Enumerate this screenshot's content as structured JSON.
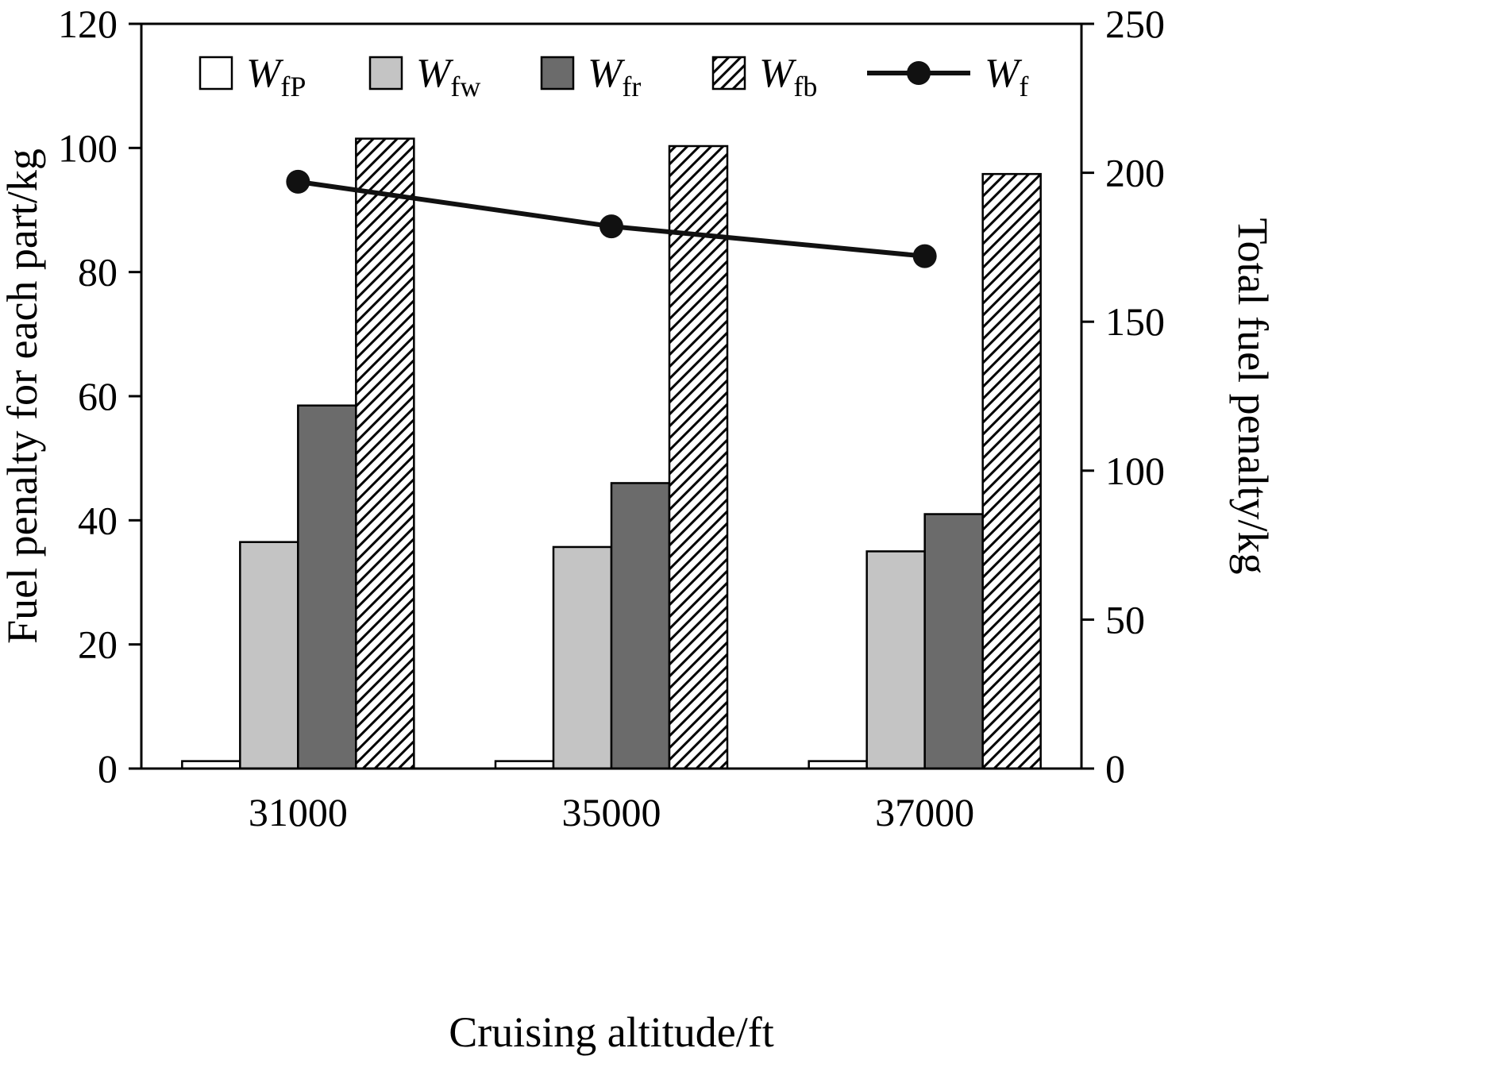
{
  "chart_data": {
    "type": "bar",
    "title": "",
    "xlabel": "Cruising altitude/ft",
    "ylabel_left": "Fuel penalty for each part/kg",
    "ylabel_right": "Total fuel penalty/kg",
    "categories": [
      "31000",
      "35000",
      "37000"
    ],
    "left_axis": {
      "min": 0,
      "max": 120,
      "ticks": [
        0,
        20,
        40,
        60,
        80,
        100,
        120
      ]
    },
    "right_axis": {
      "min": 0,
      "max": 250,
      "ticks": [
        0,
        50,
        100,
        150,
        200,
        250
      ]
    },
    "grid": "off",
    "legend_position": "top-inside",
    "series": [
      {
        "name": "WfP",
        "label_main": "W",
        "label_sub": "fP",
        "style": "bar-white",
        "values": [
          1.2,
          1.2,
          1.2
        ]
      },
      {
        "name": "Wfw",
        "label_main": "W",
        "label_sub": "fw",
        "style": "bar-lightgray",
        "values": [
          36.5,
          35.7,
          35.0
        ]
      },
      {
        "name": "Wfr",
        "label_main": "W",
        "label_sub": "fr",
        "style": "bar-darkgray",
        "values": [
          58.5,
          46.0,
          41.0
        ]
      },
      {
        "name": "Wfb",
        "label_main": "W",
        "label_sub": "fb",
        "style": "bar-hatched",
        "values": [
          101.5,
          100.3,
          95.8
        ]
      }
    ],
    "line_series": {
      "name": "Wf",
      "label_main": "W",
      "label_sub": "f",
      "axis": "right",
      "values": [
        197,
        182,
        172
      ]
    },
    "colors": {
      "white_bar": "#ffffff",
      "light_gray": "#c4c4c4",
      "dark_gray": "#6b6b6b",
      "line": "#111111",
      "axis": "#000000",
      "background": "#ffffff"
    }
  }
}
